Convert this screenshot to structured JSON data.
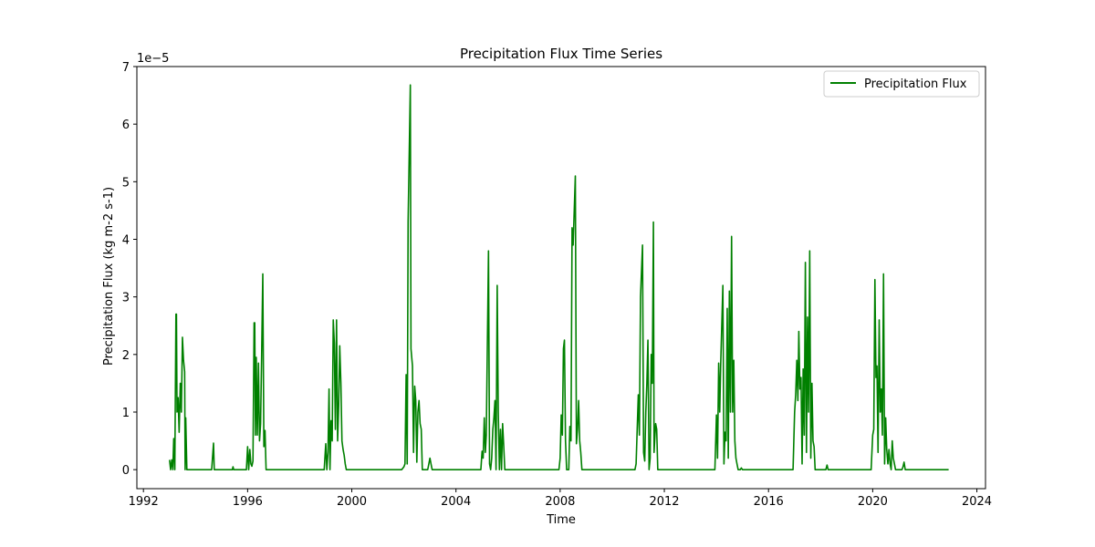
{
  "chart_data": {
    "type": "line",
    "title": "Precipitation Flux Time Series",
    "xlabel": "Time",
    "ylabel": "Precipitation Flux (kg m-2 s-1)",
    "offset_text": "1e−5",
    "scale": 1e-05,
    "xlim": [
      "1991-10-01",
      "2024-05-01"
    ],
    "ylim": [
      -3.3e-06,
      7e-05
    ],
    "x_ticks": [
      "1992-01-01",
      "1996-01-01",
      "2000-01-01",
      "2004-01-01",
      "2008-01-01",
      "2012-01-01",
      "2016-01-01",
      "2020-01-01",
      "2024-01-01"
    ],
    "x_tick_labels": [
      "1992",
      "1996",
      "2000",
      "2004",
      "2008",
      "2012",
      "2016",
      "2020",
      "2024"
    ],
    "y_ticks": [
      0,
      1e-05,
      2e-05,
      3e-05,
      4e-05,
      5e-05,
      6e-05,
      7e-05
    ],
    "y_tick_labels": [
      "0",
      "1",
      "2",
      "3",
      "4",
      "5",
      "6",
      "7"
    ],
    "grid": false,
    "legend_position": "top-right",
    "series": [
      {
        "name": "Precipitation Flux",
        "color": "#008000",
        "points": [
          [
            "1993-01-01",
            1.7e-06
          ],
          [
            "1993-01-16",
            0.0
          ],
          [
            "1993-02-01",
            1.7e-06
          ],
          [
            "1993-02-16",
            0.0
          ],
          [
            "1993-03-01",
            5.4e-06
          ],
          [
            "1993-03-16",
            0.0
          ],
          [
            "1993-04-01",
            2.7e-05
          ],
          [
            "1993-04-08",
            2.7e-05
          ],
          [
            "1993-04-16",
            1e-05
          ],
          [
            "1993-05-01",
            1.25e-05
          ],
          [
            "1993-05-16",
            6.5e-06
          ],
          [
            "1993-06-01",
            1.5e-05
          ],
          [
            "1993-06-16",
            1e-05
          ],
          [
            "1993-07-01",
            2.3e-05
          ],
          [
            "1993-07-16",
            1.9e-05
          ],
          [
            "1993-08-01",
            1.7e-05
          ],
          [
            "1993-08-08",
            0.0
          ],
          [
            "1993-08-16",
            9e-06
          ],
          [
            "1993-09-01",
            0.0
          ],
          [
            "1994-08-15",
            0.0
          ],
          [
            "1994-09-10",
            4.6e-06
          ],
          [
            "1994-09-20",
            0.0
          ],
          [
            "1995-06-01",
            0.0
          ],
          [
            "1995-06-10",
            5e-07
          ],
          [
            "1995-06-20",
            0.0
          ],
          [
            "1995-12-15",
            0.0
          ],
          [
            "1996-01-01",
            4e-06
          ],
          [
            "1996-01-16",
            0.0
          ],
          [
            "1996-02-01",
            3.5e-06
          ],
          [
            "1996-02-16",
            1e-06
          ],
          [
            "1996-03-01",
            6e-07
          ],
          [
            "1996-03-16",
            1.5e-06
          ],
          [
            "1996-04-01",
            2.55e-05
          ],
          [
            "1996-04-10",
            2.55e-05
          ],
          [
            "1996-04-20",
            6e-06
          ],
          [
            "1996-05-01",
            1.95e-05
          ],
          [
            "1996-05-16",
            6e-06
          ],
          [
            "1996-06-01",
            1.85e-05
          ],
          [
            "1996-06-16",
            5e-06
          ],
          [
            "1996-07-01",
            8e-06
          ],
          [
            "1996-07-16",
            2e-05
          ],
          [
            "1996-08-01",
            3.4e-05
          ],
          [
            "1996-08-16",
            4e-06
          ],
          [
            "1996-09-01",
            6.8e-06
          ],
          [
            "1996-09-16",
            0.0
          ],
          [
            "1998-12-10",
            0.0
          ],
          [
            "1999-01-01",
            4.5e-06
          ],
          [
            "1999-01-16",
            0.0
          ],
          [
            "1999-02-01",
            3e-06
          ],
          [
            "1999-02-16",
            1.4e-05
          ],
          [
            "1999-03-01",
            0.0
          ],
          [
            "1999-03-16",
            8.5e-06
          ],
          [
            "1999-04-01",
            5e-06
          ],
          [
            "1999-04-16",
            2.6e-05
          ],
          [
            "1999-05-01",
            2.2e-05
          ],
          [
            "1999-05-16",
            7e-06
          ],
          [
            "1999-06-01",
            2.6e-05
          ],
          [
            "1999-06-16",
            5e-06
          ],
          [
            "1999-07-01",
            1.1e-05
          ],
          [
            "1999-07-16",
            2.15e-05
          ],
          [
            "1999-08-01",
            1.5e-05
          ],
          [
            "1999-08-16",
            5e-06
          ],
          [
            "1999-09-01",
            3.5e-06
          ],
          [
            "1999-09-16",
            2.5e-06
          ],
          [
            "1999-10-01",
            1e-06
          ],
          [
            "1999-10-16",
            0.0
          ],
          [
            "2001-12-01",
            0.0
          ],
          [
            "2002-01-01",
            5e-07
          ],
          [
            "2002-01-16",
            1e-06
          ],
          [
            "2002-02-01",
            1.65e-05
          ],
          [
            "2002-02-16",
            1e-06
          ],
          [
            "2002-03-01",
            4.3e-05
          ],
          [
            "2002-04-01",
            6.68e-05
          ],
          [
            "2002-04-10",
            2.1e-05
          ],
          [
            "2002-05-01",
            1.8e-05
          ],
          [
            "2002-05-16",
            3e-06
          ],
          [
            "2002-06-01",
            1.45e-05
          ],
          [
            "2002-06-16",
            1.2e-05
          ],
          [
            "2002-07-01",
            1.3e-06
          ],
          [
            "2002-07-16",
            1e-05
          ],
          [
            "2002-08-01",
            1.2e-05
          ],
          [
            "2002-08-16",
            8e-06
          ],
          [
            "2002-09-01",
            7e-06
          ],
          [
            "2002-09-16",
            0.0
          ],
          [
            "2002-12-01",
            0.0
          ],
          [
            "2003-01-01",
            2e-06
          ],
          [
            "2003-01-16",
            1e-06
          ],
          [
            "2003-02-01",
            0.0
          ],
          [
            "2004-12-15",
            0.0
          ],
          [
            "2005-01-01",
            3.2e-06
          ],
          [
            "2005-01-16",
            2e-06
          ],
          [
            "2005-02-01",
            9e-06
          ],
          [
            "2005-02-16",
            3e-06
          ],
          [
            "2005-03-01",
            6e-06
          ],
          [
            "2005-04-01",
            3.8e-05
          ],
          [
            "2005-04-16",
            1e-06
          ],
          [
            "2005-05-01",
            0.0
          ],
          [
            "2005-05-16",
            2e-06
          ],
          [
            "2005-06-01",
            7e-06
          ],
          [
            "2005-06-16",
            9e-06
          ],
          [
            "2005-07-01",
            1.2e-05
          ],
          [
            "2005-07-16",
            0.0
          ],
          [
            "2005-08-01",
            3.2e-05
          ],
          [
            "2005-08-16",
            1e-05
          ],
          [
            "2005-09-01",
            0.0
          ],
          [
            "2005-09-16",
            7e-06
          ],
          [
            "2005-10-01",
            0.0
          ],
          [
            "2005-10-16",
            8e-06
          ],
          [
            "2005-11-01",
            4e-06
          ],
          [
            "2005-11-16",
            0.0
          ],
          [
            "2007-12-15",
            0.0
          ],
          [
            "2008-01-01",
            2e-06
          ],
          [
            "2008-01-16",
            9.5e-06
          ],
          [
            "2008-02-01",
            6e-06
          ],
          [
            "2008-02-16",
            2.1e-05
          ],
          [
            "2008-03-01",
            2.25e-05
          ],
          [
            "2008-03-16",
            5e-06
          ],
          [
            "2008-04-01",
            0.0
          ],
          [
            "2008-05-01",
            0.0
          ],
          [
            "2008-05-16",
            7.5e-06
          ],
          [
            "2008-06-01",
            5e-06
          ],
          [
            "2008-06-16",
            4.2e-05
          ],
          [
            "2008-07-01",
            3.9e-05
          ],
          [
            "2008-08-01",
            5.1e-05
          ],
          [
            "2008-08-16",
            4.5e-06
          ],
          [
            "2008-09-01",
            7e-06
          ],
          [
            "2008-09-16",
            1.2e-05
          ],
          [
            "2008-10-01",
            5e-06
          ],
          [
            "2008-10-16",
            3e-06
          ],
          [
            "2008-11-01",
            0.0
          ],
          [
            "2010-11-15",
            0.0
          ],
          [
            "2010-12-01",
            1e-06
          ],
          [
            "2011-01-01",
            1.3e-05
          ],
          [
            "2011-01-16",
            6e-06
          ],
          [
            "2011-02-01",
            3e-05
          ],
          [
            "2011-03-01",
            3.9e-05
          ],
          [
            "2011-03-16",
            3e-06
          ],
          [
            "2011-04-01",
            1.5e-06
          ],
          [
            "2011-04-16",
            1e-05
          ],
          [
            "2011-05-01",
            1.5e-05
          ],
          [
            "2011-05-16",
            2.25e-05
          ],
          [
            "2011-06-01",
            0.0
          ],
          [
            "2011-06-16",
            2e-06
          ],
          [
            "2011-07-01",
            2e-05
          ],
          [
            "2011-07-16",
            1.5e-05
          ],
          [
            "2011-08-01",
            4.3e-05
          ],
          [
            "2011-08-10",
            3e-06
          ],
          [
            "2011-09-01",
            8e-06
          ],
          [
            "2011-09-16",
            7e-06
          ],
          [
            "2011-10-01",
            0.0
          ],
          [
            "2013-12-10",
            0.0
          ],
          [
            "2014-01-01",
            9.5e-06
          ],
          [
            "2014-01-16",
            2e-06
          ],
          [
            "2014-02-01",
            1.85e-05
          ],
          [
            "2014-02-16",
            1e-05
          ],
          [
            "2014-03-01",
            1.8e-05
          ],
          [
            "2014-04-01",
            3.2e-05
          ],
          [
            "2014-04-16",
            1e-06
          ],
          [
            "2014-05-01",
            6.5e-06
          ],
          [
            "2014-05-16",
            5e-06
          ],
          [
            "2014-06-01",
            2.8e-05
          ],
          [
            "2014-06-16",
            2e-06
          ],
          [
            "2014-07-01",
            3.1e-05
          ],
          [
            "2014-07-16",
            1e-05
          ],
          [
            "2014-08-01",
            4.05e-05
          ],
          [
            "2014-08-16",
            1e-05
          ],
          [
            "2014-09-01",
            1.9e-05
          ],
          [
            "2014-09-16",
            5e-06
          ],
          [
            "2014-10-01",
            2e-06
          ],
          [
            "2014-10-16",
            1e-06
          ],
          [
            "2014-11-01",
            0.0
          ],
          [
            "2014-12-01",
            0.0
          ],
          [
            "2014-12-16",
            3e-07
          ],
          [
            "2015-01-01",
            0.0
          ],
          [
            "2016-12-10",
            0.0
          ],
          [
            "2017-01-01",
            1e-05
          ],
          [
            "2017-01-16",
            1.3e-05
          ],
          [
            "2017-02-01",
            1.9e-05
          ],
          [
            "2017-02-16",
            1.2e-05
          ],
          [
            "2017-03-01",
            2.4e-05
          ],
          [
            "2017-03-16",
            1.4e-05
          ],
          [
            "2017-04-01",
            1.6e-05
          ],
          [
            "2017-04-16",
            1e-06
          ],
          [
            "2017-05-01",
            1.75e-05
          ],
          [
            "2017-05-16",
            6e-06
          ],
          [
            "2017-06-01",
            3.6e-05
          ],
          [
            "2017-06-16",
            3e-06
          ],
          [
            "2017-07-01",
            2.65e-05
          ],
          [
            "2017-07-16",
            1e-05
          ],
          [
            "2017-08-01",
            3.8e-05
          ],
          [
            "2017-08-16",
            2e-06
          ],
          [
            "2017-09-01",
            1.5e-05
          ],
          [
            "2017-09-16",
            5e-06
          ],
          [
            "2017-10-01",
            4e-06
          ],
          [
            "2017-10-16",
            0.0
          ],
          [
            "2018-03-15",
            0.0
          ],
          [
            "2018-04-01",
            8e-07
          ],
          [
            "2018-04-16",
            0.0
          ],
          [
            "2019-12-10",
            0.0
          ],
          [
            "2020-01-01",
            6e-06
          ],
          [
            "2020-01-16",
            7e-06
          ],
          [
            "2020-02-01",
            3.3e-05
          ],
          [
            "2020-02-16",
            1.6e-05
          ],
          [
            "2020-03-01",
            1.8e-05
          ],
          [
            "2020-03-16",
            3e-06
          ],
          [
            "2020-04-01",
            2.6e-05
          ],
          [
            "2020-04-16",
            1e-05
          ],
          [
            "2020-05-01",
            1.4e-05
          ],
          [
            "2020-05-16",
            6e-06
          ],
          [
            "2020-06-01",
            3.4e-05
          ],
          [
            "2020-06-16",
            1e-06
          ],
          [
            "2020-07-01",
            9e-06
          ],
          [
            "2020-07-16",
            3.5e-06
          ],
          [
            "2020-08-01",
            1e-06
          ],
          [
            "2020-08-16",
            3.5e-06
          ],
          [
            "2020-09-01",
            1e-06
          ],
          [
            "2020-09-16",
            0.0
          ],
          [
            "2020-10-01",
            5e-06
          ],
          [
            "2020-10-16",
            2e-06
          ],
          [
            "2020-11-01",
            1e-06
          ],
          [
            "2020-11-16",
            0.0
          ],
          [
            "2021-02-15",
            0.0
          ],
          [
            "2021-03-01",
            5e-07
          ],
          [
            "2021-03-16",
            1.3e-06
          ],
          [
            "2021-04-01",
            0.0
          ],
          [
            "2022-12-01",
            0.0
          ]
        ]
      }
    ]
  }
}
